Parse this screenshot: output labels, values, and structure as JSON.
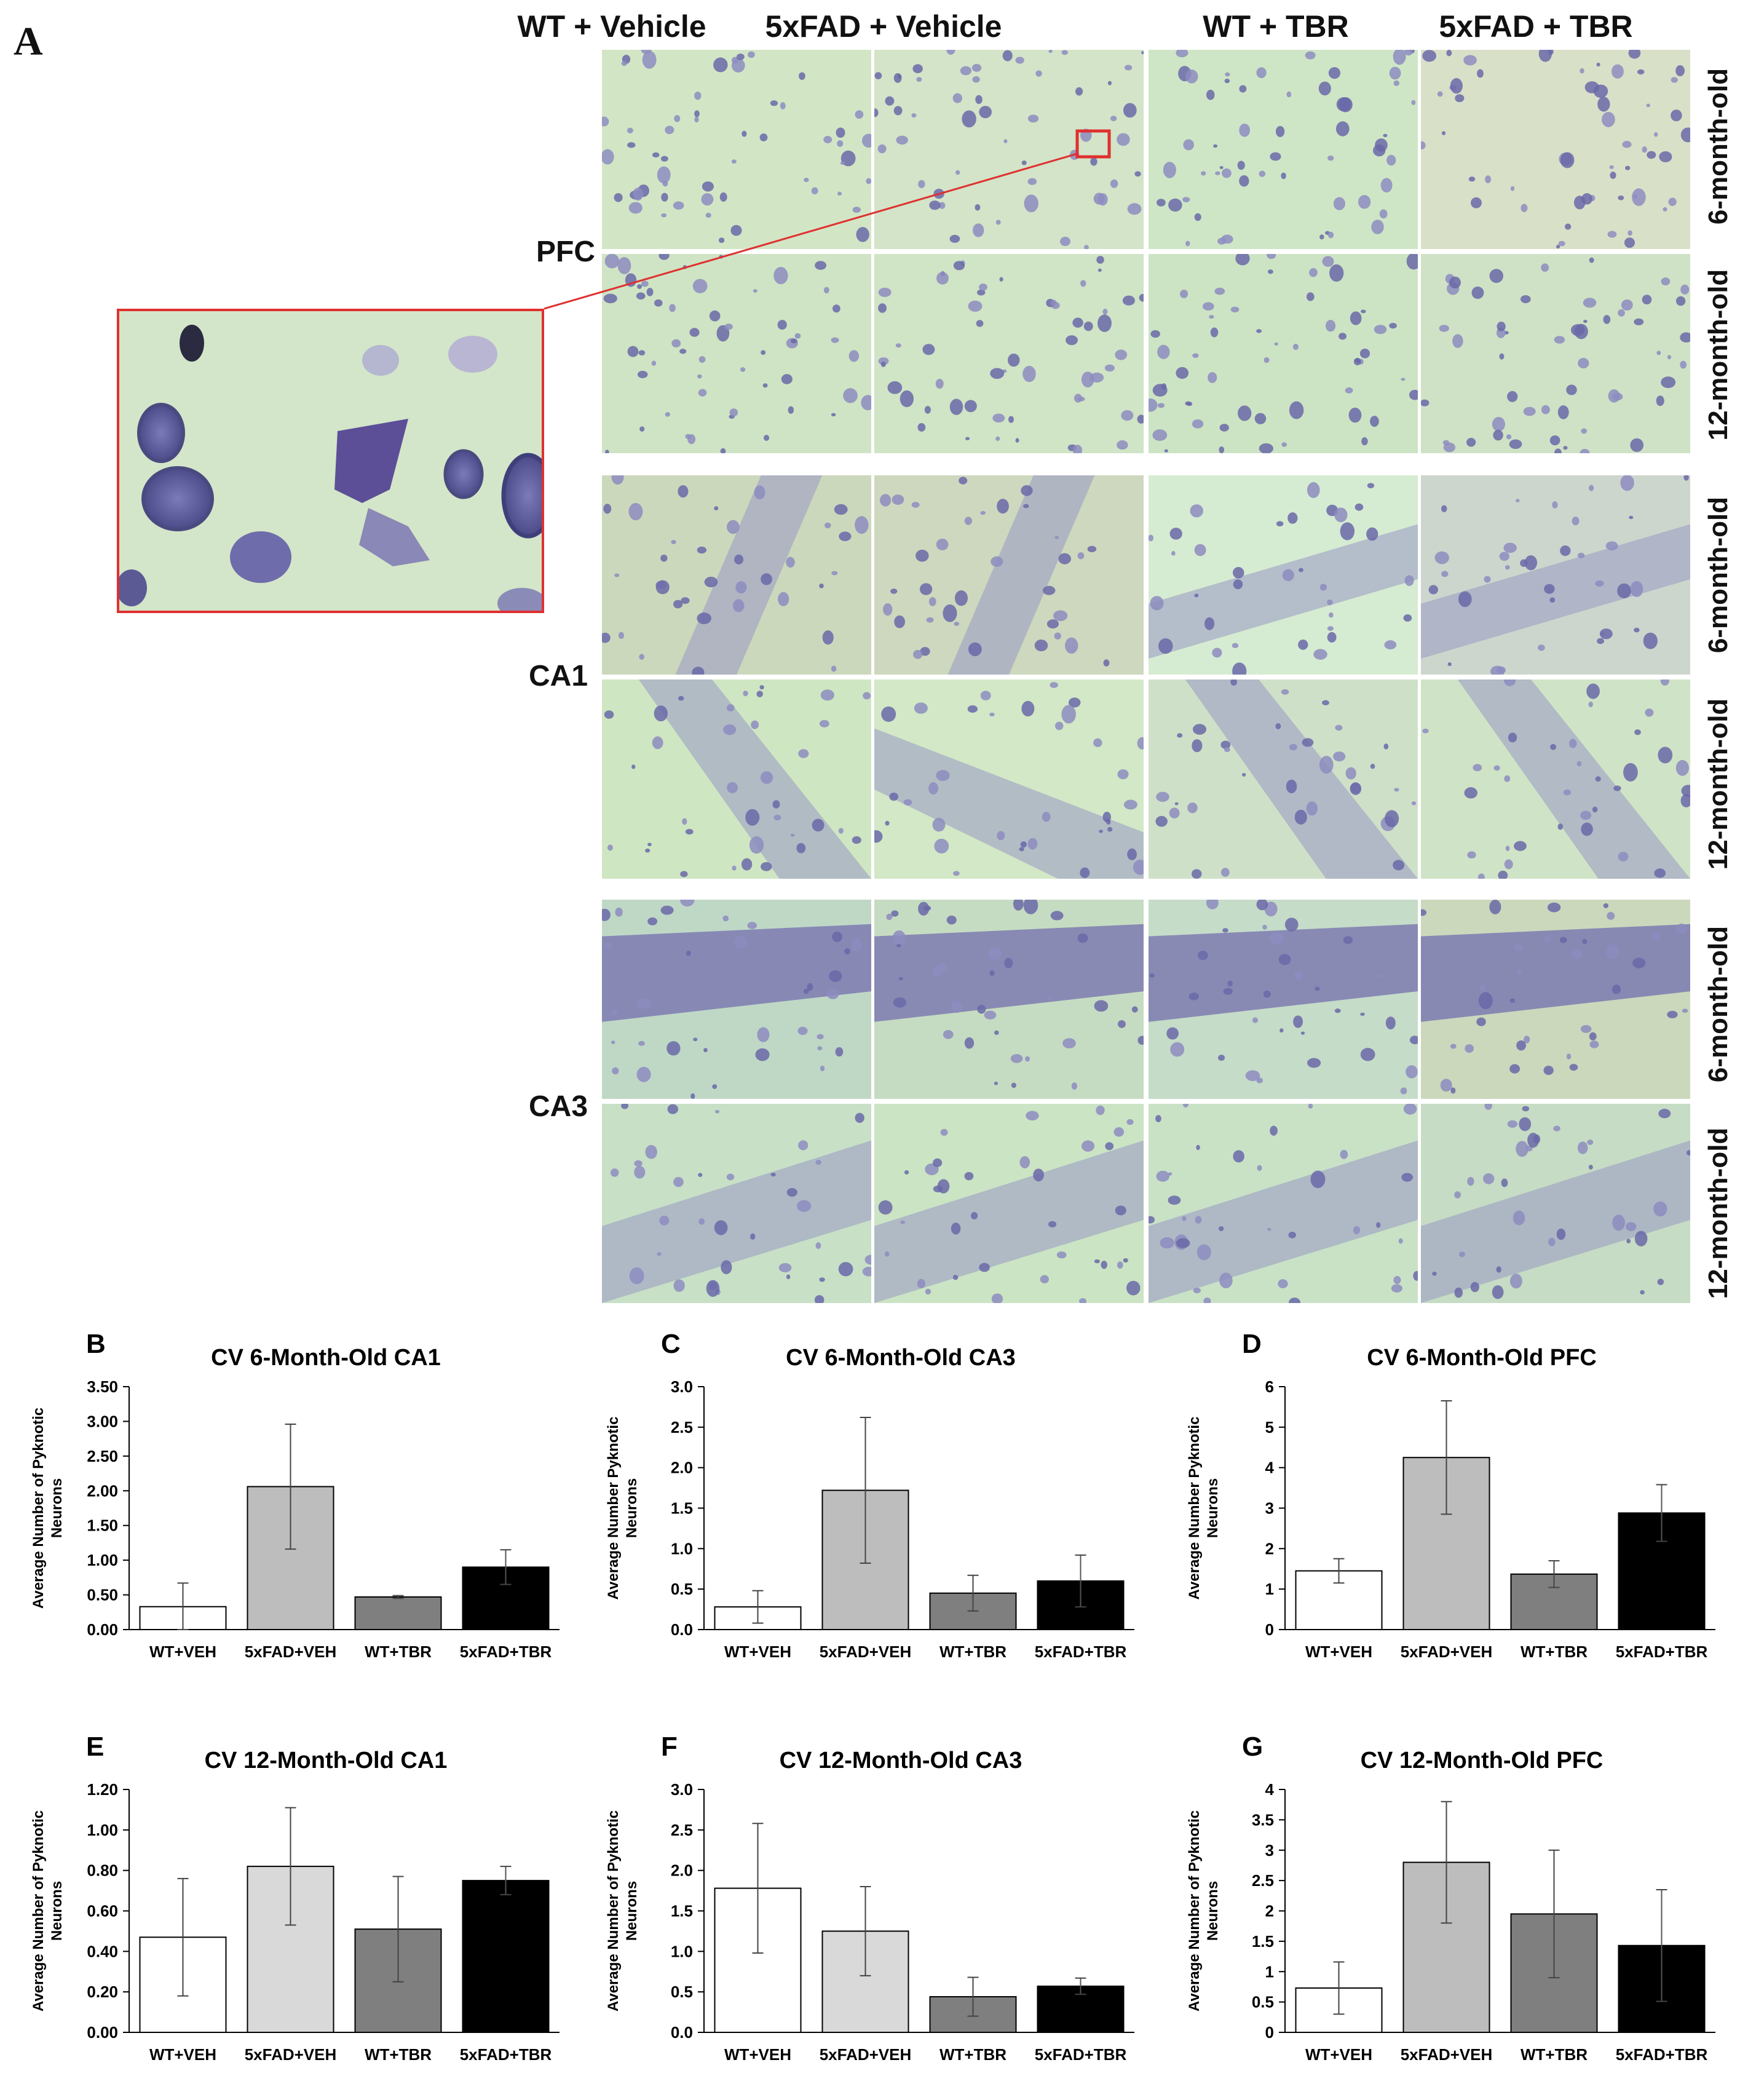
{
  "panel_a": {
    "letter": "A",
    "columns": [
      "WT + Vehicle",
      "5xFAD + Vehicle",
      "WT + TBR",
      "5xFAD + TBR"
    ],
    "regions": [
      "PFC",
      "CA1",
      "CA3"
    ],
    "ages": [
      "6-month-old",
      "12-month-old"
    ],
    "colors": {
      "tissue_bg": "#cfe4c4",
      "stain": "#5a5aa0",
      "inset_border": "#e03030"
    }
  },
  "chart_data": [
    {
      "letter": "B",
      "type": "bar",
      "title": "CV 6-Month-Old CA1",
      "ylabel": "Average Number of Pyknotic Neurons",
      "categories": [
        "WT+VEH",
        "5xFAD+VEH",
        "WT+TBR",
        "5xFAD+TBR"
      ],
      "values": [
        0.33,
        2.06,
        0.47,
        0.9
      ],
      "errors": [
        0.34,
        0.9,
        0.02,
        0.25
      ],
      "ylim": [
        0,
        3.5
      ],
      "yticks": [
        "0.00",
        "0.50",
        "1.00",
        "1.50",
        "2.00",
        "2.50",
        "3.00",
        "3.50"
      ],
      "colors": [
        "#ffffff",
        "#bdbdbd",
        "#7f7f7f",
        "#000000"
      ]
    },
    {
      "letter": "C",
      "type": "bar",
      "title": "CV 6-Month-Old CA3",
      "ylabel": "Average Number Pyknotic Neurons",
      "categories": [
        "WT+VEH",
        "5xFAD+VEH",
        "WT+TBR",
        "5xFAD+TBR"
      ],
      "values": [
        0.28,
        1.72,
        0.45,
        0.6
      ],
      "errors": [
        0.2,
        0.9,
        0.22,
        0.32
      ],
      "ylim": [
        0,
        3.0
      ],
      "yticks": [
        "0.0",
        "0.5",
        "1.0",
        "1.5",
        "2.0",
        "2.5",
        "3.0"
      ],
      "colors": [
        "#ffffff",
        "#bdbdbd",
        "#7f7f7f",
        "#000000"
      ]
    },
    {
      "letter": "D",
      "type": "bar",
      "title": "CV 6-Month-Old PFC",
      "ylabel": "Average Number Pyknotic Neurons",
      "categories": [
        "WT+VEH",
        "5xFAD+VEH",
        "WT+TBR",
        "5xFAD+TBR"
      ],
      "values": [
        1.45,
        4.25,
        1.37,
        2.88
      ],
      "errors": [
        0.3,
        1.4,
        0.33,
        0.7
      ],
      "ylim": [
        0,
        6
      ],
      "yticks": [
        "0",
        "1",
        "2",
        "3",
        "4",
        "5",
        "6"
      ],
      "colors": [
        "#ffffff",
        "#bdbdbd",
        "#7f7f7f",
        "#000000"
      ]
    },
    {
      "letter": "E",
      "type": "bar",
      "title": "CV 12-Month-Old CA1",
      "ylabel": "Average Number of Pyknotic Neurons",
      "categories": [
        "WT+VEH",
        "5xFAD+VEH",
        "WT+TBR",
        "5xFAD+TBR"
      ],
      "values": [
        0.47,
        0.82,
        0.51,
        0.75
      ],
      "errors": [
        0.29,
        0.29,
        0.26,
        0.07
      ],
      "ylim": [
        0,
        1.2
      ],
      "yticks": [
        "0.00",
        "0.20",
        "0.40",
        "0.60",
        "0.80",
        "1.00",
        "1.20"
      ],
      "colors": [
        "#ffffff",
        "#d9d9d9",
        "#7f7f7f",
        "#000000"
      ]
    },
    {
      "letter": "F",
      "type": "bar",
      "title": "CV 12-Month-Old CA3",
      "ylabel": "Average Number of Pyknotic Neurons",
      "categories": [
        "WT+VEH",
        "5xFAD+VEH",
        "WT+TBR",
        "5xFAD+TBR"
      ],
      "values": [
        1.78,
        1.25,
        0.44,
        0.57
      ],
      "errors": [
        0.8,
        0.55,
        0.24,
        0.1
      ],
      "ylim": [
        0,
        3.0
      ],
      "yticks": [
        "0.0",
        "0.5",
        "1.0",
        "1.5",
        "2.0",
        "2.5",
        "3.0"
      ],
      "colors": [
        "#ffffff",
        "#d9d9d9",
        "#7f7f7f",
        "#000000"
      ]
    },
    {
      "letter": "G",
      "type": "bar",
      "title": "CV 12-Month-Old PFC",
      "ylabel": "Average Number of Pyknotic Neurons",
      "categories": [
        "WT+VEH",
        "5xFAD+VEH",
        "WT+TBR",
        "5xFAD+TBR"
      ],
      "values": [
        0.73,
        2.8,
        1.95,
        1.43
      ],
      "errors": [
        0.43,
        1.0,
        1.05,
        0.92
      ],
      "ylim": [
        0,
        4
      ],
      "yticks": [
        "0",
        "0.5",
        "1",
        "1.5",
        "2",
        "2.5",
        "3",
        "3.5",
        "4"
      ],
      "colors": [
        "#ffffff",
        "#bdbdbd",
        "#7f7f7f",
        "#000000"
      ]
    }
  ]
}
